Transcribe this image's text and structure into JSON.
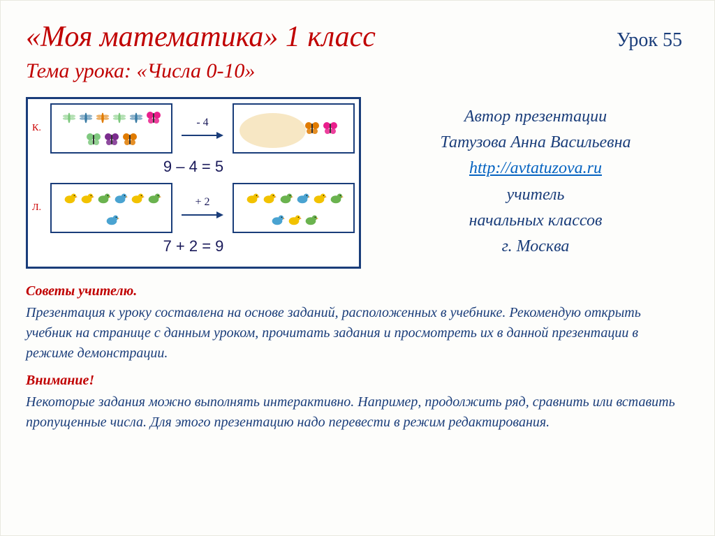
{
  "header": {
    "title": "«Моя математика» 1 класс",
    "lesson": "Урок 55",
    "topic": "Тема урока: «Числа 0-10»"
  },
  "exercise": {
    "row1_label": "К.",
    "row1_op": "- 4",
    "row1_left_count": 9,
    "row1_right_count": 5,
    "row1_eq": "9 – 4 = 5",
    "row2_label": "Л.",
    "row2_op": "+ 2",
    "row2_left_count": 7,
    "row2_right_count": 9,
    "row2_eq": "7 + 2 = 9",
    "colors": {
      "dragonfly": [
        "#7fc97f",
        "#3a7ca5",
        "#e07b00",
        "#7fc97f",
        "#3a7ca5"
      ],
      "butterfly": [
        "#e91e8c",
        "#7fc97f",
        "#7b2d8e",
        "#e07b00"
      ],
      "butterfly_result": [
        "#e91e8c",
        "#7fc97f",
        "#7b2d8e",
        "#e07b00",
        "#e91e8c"
      ],
      "chick_row1": [
        "#f2c200",
        "#f2c200",
        "#6bb34f",
        "#4aa3d1",
        "#f2c200",
        "#6bb34f",
        "#4aa3d1"
      ],
      "chick_row2": [
        "#f2c200",
        "#f2c200",
        "#6bb34f",
        "#4aa3d1",
        "#f2c200",
        "#6bb34f",
        "#4aa3d1",
        "#f2c200",
        "#6bb34f"
      ]
    }
  },
  "author": {
    "line1": "Автор презентации",
    "line2": "Татузова Анна Васильевна",
    "link_text": "http://avtatuzova.ru",
    "link_href": "http://avtatuzova.ru",
    "line3": "учитель",
    "line4": "начальных классов",
    "line5": "г. Москва"
  },
  "advice": {
    "heading": "Советы учителю.",
    "p1": "Презентация к уроку составлена на основе заданий, расположенных в учебнике. Рекомендую открыть учебник на странице с данным уроком, прочитать задания и просмотреть их в данной презентации в режиме демонстрации.",
    "attention": "Внимание!",
    "p2": "Некоторые задания можно выполнять интерактивно. Например, продолжить ряд, сравнить или вставить пропущенные числа.  Для этого презентацию надо перевести в режим редактирования."
  }
}
